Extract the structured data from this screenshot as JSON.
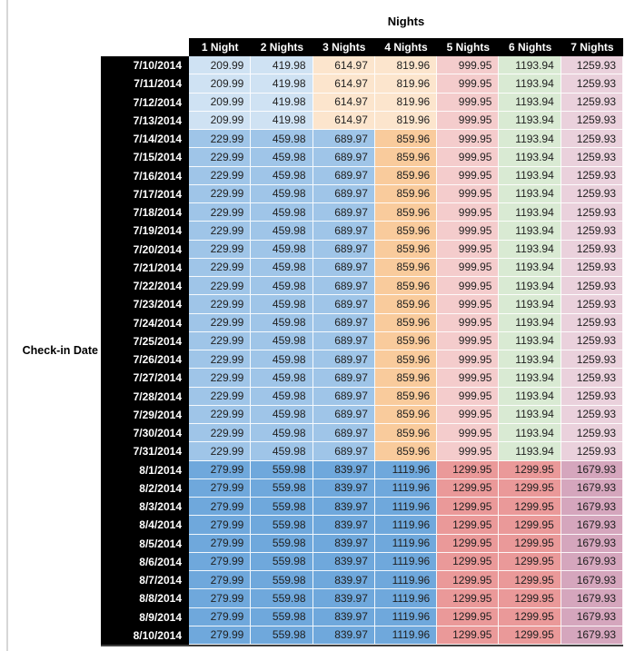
{
  "chart_data": {
    "type": "table",
    "title": "Nights",
    "row_axis_label": "Check-in Date",
    "columns": [
      "1 Night",
      "2 Nights",
      "3 Nights",
      "4 Nights",
      "5 Nights",
      "6 Nights",
      "7 Nights"
    ],
    "palette": {
      "blue_light": "#cfe2f3",
      "blue_med": "#9fc5e8",
      "blue_dark": "#6fa8dc",
      "orange_light": "#fce5cd",
      "orange_med": "#f9cb9c",
      "red_light": "#f4cccc",
      "red_med": "#ea9999",
      "green_light": "#d9ead3",
      "magenta_light": "#ead1dc",
      "magenta_med": "#d5a6bd",
      "header_bg": "#000000",
      "header_text": "#ffffff"
    },
    "groups": {
      "A": {
        "values": [
          "209.99",
          "419.98",
          "614.97",
          "819.96",
          "999.95",
          "1193.94",
          "1259.93"
        ],
        "cell_colors": [
          "blue_light",
          "blue_light",
          "orange_light",
          "orange_light",
          "red_light",
          "green_light",
          "magenta_light"
        ]
      },
      "B": {
        "values": [
          "229.99",
          "459.98",
          "689.97",
          "859.96",
          "999.95",
          "1193.94",
          "1259.93"
        ],
        "cell_colors": [
          "blue_med",
          "blue_med",
          "blue_med",
          "orange_med",
          "red_light",
          "green_light",
          "magenta_light"
        ]
      },
      "C": {
        "values": [
          "279.99",
          "559.98",
          "839.97",
          "1119.96",
          "1299.95",
          "1299.95",
          "1679.93"
        ],
        "cell_colors": [
          "blue_dark",
          "blue_dark",
          "blue_dark",
          "blue_dark",
          "red_med",
          "red_med",
          "magenta_med"
        ]
      }
    },
    "rows": [
      {
        "date": "7/10/2014",
        "group": "A"
      },
      {
        "date": "7/11/2014",
        "group": "A"
      },
      {
        "date": "7/12/2014",
        "group": "A"
      },
      {
        "date": "7/13/2014",
        "group": "A"
      },
      {
        "date": "7/14/2014",
        "group": "B"
      },
      {
        "date": "7/15/2014",
        "group": "B"
      },
      {
        "date": "7/16/2014",
        "group": "B"
      },
      {
        "date": "7/17/2014",
        "group": "B"
      },
      {
        "date": "7/18/2014",
        "group": "B"
      },
      {
        "date": "7/19/2014",
        "group": "B"
      },
      {
        "date": "7/20/2014",
        "group": "B"
      },
      {
        "date": "7/21/2014",
        "group": "B"
      },
      {
        "date": "7/22/2014",
        "group": "B"
      },
      {
        "date": "7/23/2014",
        "group": "B"
      },
      {
        "date": "7/24/2014",
        "group": "B"
      },
      {
        "date": "7/25/2014",
        "group": "B"
      },
      {
        "date": "7/26/2014",
        "group": "B"
      },
      {
        "date": "7/27/2014",
        "group": "B"
      },
      {
        "date": "7/28/2014",
        "group": "B"
      },
      {
        "date": "7/29/2014",
        "group": "B"
      },
      {
        "date": "7/30/2014",
        "group": "B"
      },
      {
        "date": "7/31/2014",
        "group": "B"
      },
      {
        "date": "8/1/2014",
        "group": "C"
      },
      {
        "date": "8/2/2014",
        "group": "C"
      },
      {
        "date": "8/3/2014",
        "group": "C"
      },
      {
        "date": "8/4/2014",
        "group": "C"
      },
      {
        "date": "8/5/2014",
        "group": "C"
      },
      {
        "date": "8/6/2014",
        "group": "C"
      },
      {
        "date": "8/7/2014",
        "group": "C"
      },
      {
        "date": "8/8/2014",
        "group": "C"
      },
      {
        "date": "8/9/2014",
        "group": "C"
      },
      {
        "date": "8/10/2014",
        "group": "C"
      }
    ]
  }
}
